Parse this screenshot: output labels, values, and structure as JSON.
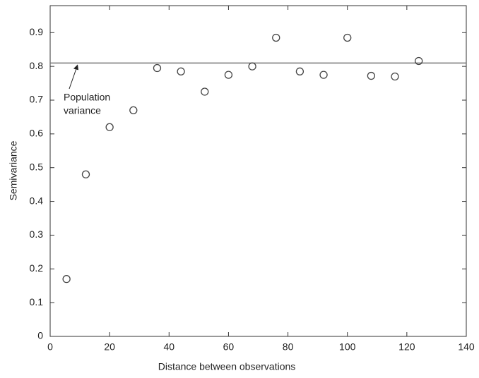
{
  "chart_data": {
    "type": "scatter",
    "x_label": "Distance between observations",
    "y_label": "Semivariance",
    "x": [
      5.5,
      12,
      20,
      28,
      36,
      44,
      52,
      60,
      68,
      76,
      84,
      92,
      100,
      108,
      116,
      124
    ],
    "series": [
      {
        "name": null,
        "color": "#444444",
        "values": [
          0.17,
          0.48,
          0.62,
          0.67,
          0.795,
          0.785,
          0.725,
          0.775,
          0.8,
          0.885,
          0.785,
          0.775,
          0.885,
          0.772,
          0.77,
          0.816
        ]
      }
    ],
    "xlim": [
      0,
      140
    ],
    "ylim": [
      0,
      0.98
    ],
    "xticks": [
      0,
      20,
      40,
      60,
      80,
      100,
      120,
      140
    ],
    "yticks": [
      0,
      0.1,
      0.2,
      0.3,
      0.4,
      0.5,
      0.6,
      0.7,
      0.8,
      0.9
    ],
    "hline": {
      "value": 0.81,
      "label": [
        "Population",
        "variance"
      ],
      "color": "#777777"
    }
  }
}
